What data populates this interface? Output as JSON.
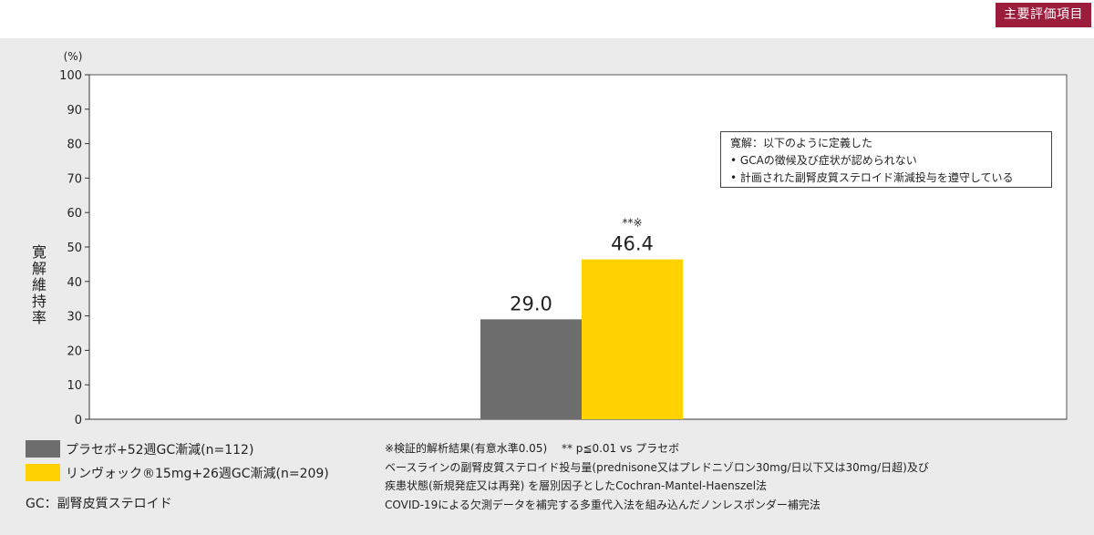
{
  "header": {
    "badge": "主要評価項目"
  },
  "chart_data": {
    "type": "bar",
    "categories": [
      "プラセボ+52週GC漸減(n=112)",
      "リンヴォック®15mg+26週GC漸減(n=209)"
    ],
    "values": [
      29.0,
      46.4
    ],
    "value_labels": [
      "29.0",
      "46.4"
    ],
    "significance": [
      "",
      "**※"
    ],
    "colors": [
      "#6d6d6d",
      "#ffd200"
    ],
    "unit": "(%)",
    "ylabel": "寛解維持率",
    "ylim": [
      0,
      100
    ],
    "yticks": [
      0,
      10,
      20,
      30,
      40,
      50,
      60,
      70,
      80,
      90,
      100
    ],
    "grid": false
  },
  "definition_box": {
    "title": "寛解：以下のように定義した",
    "items": [
      "• GCAの徴候及び症状が認められない",
      "• 計画された副腎皮質ステロイド漸減投与を遵守している"
    ]
  },
  "legend": [
    {
      "label": "プラセボ+52週GC漸減(n=112)",
      "color": "#6d6d6d"
    },
    {
      "label": "リンヴォック®15mg+26週GC漸減(n=209)",
      "color": "#ffd200"
    }
  ],
  "abbreviation": "GC：副腎皮質ステロイド",
  "notes": [
    "※検証的解析結果(有意水準0.05)　 ** p≦0.01 vs プラセボ",
    "ベースラインの副腎皮質ステロイド投与量(prednisone又はプレドニゾロン30mg/日以下又は30mg/日超)及び",
    "疾患状態(新規発症又は再発) を層別因子としたCochran-Mantel-Haenszel法",
    "COVID-19による欠測データを補完する多重代入法を組み込んだノンレスポンダー補完法"
  ]
}
